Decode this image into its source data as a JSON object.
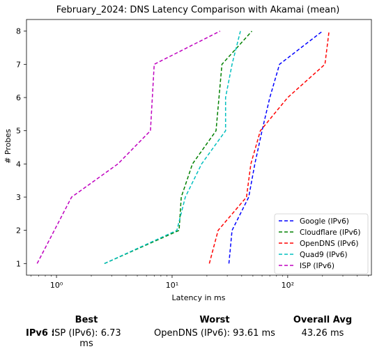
{
  "chart_data": {
    "type": "line",
    "title": "February_2024: DNS Latency Comparison with Akamai (mean)",
    "xlabel": "Latency in ms",
    "ylabel": "# Probes",
    "xscale": "log",
    "xlim": [
      0.55,
      530
    ],
    "ylim": [
      0.65,
      8.35
    ],
    "xticks": [
      {
        "value": 1,
        "label": "10⁰"
      },
      {
        "value": 10,
        "label": "10¹"
      },
      {
        "value": 100,
        "label": "10²"
      }
    ],
    "yticks": [
      1,
      2,
      3,
      4,
      5,
      6,
      7,
      8
    ],
    "grid": false,
    "legend_position": "lower-right",
    "series": [
      {
        "name": "Google (IPv6)",
        "color": "#0000ff",
        "points": [
          [
            31,
            1
          ],
          [
            33,
            2
          ],
          [
            46,
            3
          ],
          [
            52,
            4
          ],
          [
            60,
            5
          ],
          [
            70,
            6
          ],
          [
            85,
            7
          ],
          [
            200,
            8
          ]
        ]
      },
      {
        "name": "Cloudflare (IPv6)",
        "color": "#008000",
        "points": [
          [
            2.6,
            1
          ],
          [
            11.5,
            2
          ],
          [
            12,
            3
          ],
          [
            15,
            4
          ],
          [
            24,
            5
          ],
          [
            27,
            7
          ],
          [
            49,
            8
          ]
        ]
      },
      {
        "name": "OpenDNS (IPv6)",
        "color": "#ff0000",
        "points": [
          [
            21,
            1
          ],
          [
            25,
            2
          ],
          [
            44,
            3
          ],
          [
            48,
            4
          ],
          [
            58,
            5
          ],
          [
            100,
            6
          ],
          [
            210,
            7
          ],
          [
            228,
            8
          ]
        ]
      },
      {
        "name": "Quad9 (IPv6)",
        "color": "#00bfbf",
        "points": [
          [
            2.6,
            1
          ],
          [
            11,
            2
          ],
          [
            13,
            3
          ],
          [
            18,
            4
          ],
          [
            29,
            5
          ],
          [
            29,
            6
          ],
          [
            33,
            7
          ],
          [
            39,
            8
          ]
        ]
      },
      {
        "name": "ISP (IPv6)",
        "color": "#bf00bf",
        "points": [
          [
            0.68,
            1
          ],
          [
            1.35,
            3
          ],
          [
            3.4,
            4
          ],
          [
            6.5,
            5
          ],
          [
            7,
            7
          ],
          [
            26,
            8
          ]
        ]
      }
    ]
  },
  "summary": {
    "headers": {
      "best": "Best",
      "worst": "Worst",
      "overall": "Overall Avg"
    },
    "row_label": "IPv6 :",
    "best": "ISP (IPv6): 6.73 ms",
    "worst": "OpenDNS (IPv6): 93.61 ms",
    "overall": "43.26 ms"
  }
}
